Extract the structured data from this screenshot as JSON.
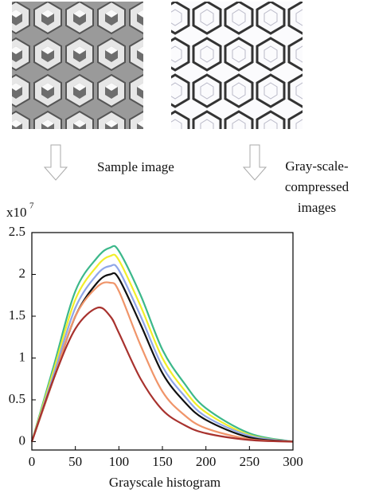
{
  "chart_data": {
    "type": "line",
    "x_label": "Grayscale histogram",
    "multiplier": {
      "base": "x10",
      "exponent": "7"
    },
    "annotations": {
      "sample": "Sample image",
      "compressed": [
        "Gray-scale-",
        "compressed",
        "images"
      ]
    },
    "x": [
      0,
      25,
      50,
      75,
      90,
      100,
      125,
      150,
      175,
      200,
      250,
      300
    ],
    "series": [
      {
        "color": "#3cb88a",
        "values": [
          0,
          0.9,
          1.8,
          2.2,
          2.32,
          2.28,
          1.75,
          1.1,
          0.7,
          0.4,
          0.1,
          0
        ]
      },
      {
        "color": "#f2ee2a",
        "values": [
          0,
          0.85,
          1.7,
          2.1,
          2.22,
          2.17,
          1.62,
          1.0,
          0.62,
          0.35,
          0.08,
          0
        ]
      },
      {
        "color": "#8fa6e8",
        "values": [
          0,
          0.8,
          1.6,
          2.0,
          2.1,
          2.05,
          1.5,
          0.9,
          0.55,
          0.3,
          0.07,
          0
        ]
      },
      {
        "color": "#111111",
        "values": [
          0,
          0.75,
          1.5,
          1.9,
          2.0,
          1.95,
          1.4,
          0.82,
          0.48,
          0.26,
          0.05,
          0
        ]
      },
      {
        "color": "#f0956a",
        "values": [
          0,
          0.75,
          1.5,
          1.85,
          1.9,
          1.8,
          1.15,
          0.6,
          0.32,
          0.16,
          0.03,
          0
        ]
      },
      {
        "color": "#a8322e",
        "values": [
          0,
          0.75,
          1.35,
          1.6,
          1.5,
          1.3,
          0.75,
          0.38,
          0.2,
          0.1,
          0.02,
          0
        ]
      }
    ],
    "xlim": [
      0,
      300
    ],
    "xticks": [
      0,
      50,
      100,
      150,
      200,
      250,
      300
    ],
    "ylim": [
      -0.1,
      2.5
    ],
    "yticks": [
      0,
      0.5,
      1,
      1.5,
      2,
      2.5
    ]
  }
}
